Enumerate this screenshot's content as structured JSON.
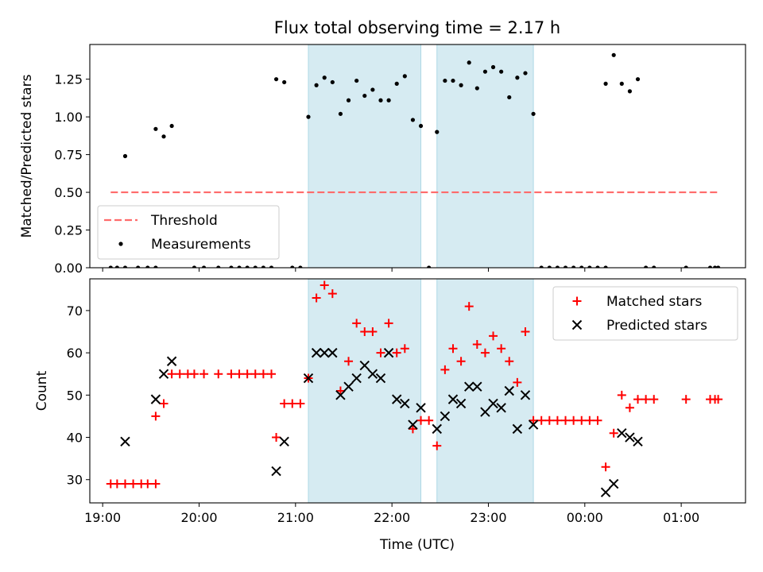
{
  "title": "Flux total observing time = 2.17 h",
  "xlabel": "Time (UTC)",
  "colors": {
    "threshold": "#ff6b6b",
    "shade": "#add8e6",
    "matched": "#ff0000",
    "predicted": "#000000",
    "measurements": "#000000"
  },
  "chart_data": [
    {
      "type": "scatter",
      "panel": "top",
      "ylabel": "Matched/Predicted stars",
      "ylim": [
        0,
        1.48
      ],
      "yticks": [
        "0.00",
        "0.25",
        "0.50",
        "0.75",
        "1.00",
        "1.25"
      ],
      "xticks": [
        "19:00",
        "20:00",
        "21:00",
        "22:00",
        "23:00",
        "00:00",
        "01:00"
      ],
      "xlim": [
        "18:52",
        "01:40"
      ],
      "legend": {
        "position": "lower-left",
        "entries": [
          "Threshold",
          "Measurements"
        ]
      },
      "shaded_intervals": [
        [
          "21:08",
          "22:18"
        ],
        [
          "22:28",
          "23:28"
        ]
      ],
      "threshold": {
        "name": "Threshold",
        "y": 0.5,
        "x_start": "19:05",
        "x_end": "01:23"
      },
      "series": [
        {
          "name": "Measurements",
          "points": [
            [
              "19:05",
              0
            ],
            [
              "19:09",
              0
            ],
            [
              "19:14",
              0
            ],
            [
              "19:22",
              0
            ],
            [
              "19:28",
              0
            ],
            [
              "19:33",
              0
            ],
            [
              "19:14",
              0.74
            ],
            [
              "19:33",
              0.92
            ],
            [
              "19:38",
              0.87
            ],
            [
              "19:43",
              0.94
            ],
            [
              "19:57",
              0
            ],
            [
              "20:03",
              0
            ],
            [
              "20:12",
              0
            ],
            [
              "20:20",
              0
            ],
            [
              "20:25",
              0
            ],
            [
              "20:30",
              0
            ],
            [
              "20:35",
              0
            ],
            [
              "20:40",
              0
            ],
            [
              "20:45",
              0
            ],
            [
              "20:48",
              1.25
            ],
            [
              "20:53",
              1.23
            ],
            [
              "20:58",
              0
            ],
            [
              "21:03",
              0
            ],
            [
              "21:08",
              1.0
            ],
            [
              "21:13",
              1.21
            ],
            [
              "21:18",
              1.26
            ],
            [
              "21:23",
              1.23
            ],
            [
              "21:28",
              1.02
            ],
            [
              "21:33",
              1.11
            ],
            [
              "21:38",
              1.24
            ],
            [
              "21:43",
              1.14
            ],
            [
              "21:48",
              1.18
            ],
            [
              "21:53",
              1.11
            ],
            [
              "21:58",
              1.11
            ],
            [
              "22:03",
              1.22
            ],
            [
              "22:08",
              1.27
            ],
            [
              "22:13",
              0.98
            ],
            [
              "22:18",
              0.94
            ],
            [
              "22:23",
              0
            ],
            [
              "22:28",
              0.9
            ],
            [
              "22:33",
              1.24
            ],
            [
              "22:38",
              1.24
            ],
            [
              "22:43",
              1.21
            ],
            [
              "22:48",
              1.36
            ],
            [
              "22:53",
              1.19
            ],
            [
              "22:58",
              1.3
            ],
            [
              "23:03",
              1.33
            ],
            [
              "23:08",
              1.3
            ],
            [
              "23:13",
              1.13
            ],
            [
              "23:18",
              1.26
            ],
            [
              "23:23",
              1.29
            ],
            [
              "23:28",
              1.02
            ],
            [
              "23:33",
              0
            ],
            [
              "23:38",
              0
            ],
            [
              "23:43",
              0
            ],
            [
              "23:48",
              0
            ],
            [
              "23:53",
              0
            ],
            [
              "23:58",
              0
            ],
            [
              "00:03",
              0
            ],
            [
              "00:08",
              0
            ],
            [
              "00:13",
              0
            ],
            [
              "00:13",
              1.22
            ],
            [
              "00:18",
              1.41
            ],
            [
              "00:23",
              1.22
            ],
            [
              "00:28",
              1.17
            ],
            [
              "00:33",
              1.25
            ],
            [
              "00:38",
              0
            ],
            [
              "00:43",
              0
            ],
            [
              "01:03",
              0
            ],
            [
              "01:18",
              0
            ],
            [
              "01:21",
              0
            ],
            [
              "01:23",
              0
            ]
          ]
        }
      ]
    },
    {
      "type": "scatter",
      "panel": "bottom",
      "ylabel": "Count",
      "ylim": [
        24.5,
        77.5
      ],
      "yticks": [
        "30",
        "40",
        "50",
        "60",
        "70"
      ],
      "xticks": [
        "19:00",
        "20:00",
        "21:00",
        "22:00",
        "23:00",
        "00:00",
        "01:00"
      ],
      "xlim": [
        "18:52",
        "01:40"
      ],
      "legend": {
        "position": "upper-right",
        "entries": [
          "Matched stars",
          "Predicted stars"
        ]
      },
      "shaded_intervals": [
        [
          "21:08",
          "22:18"
        ],
        [
          "22:28",
          "23:28"
        ]
      ],
      "series": [
        {
          "name": "Matched stars",
          "marker": "plus",
          "points": [
            [
              "19:05",
              29
            ],
            [
              "19:09",
              29
            ],
            [
              "19:14",
              29
            ],
            [
              "19:19",
              29
            ],
            [
              "19:24",
              29
            ],
            [
              "19:28",
              29
            ],
            [
              "19:33",
              29
            ],
            [
              "19:33",
              45
            ],
            [
              "19:38",
              48
            ],
            [
              "19:43",
              55
            ],
            [
              "19:48",
              55
            ],
            [
              "19:53",
              55
            ],
            [
              "19:57",
              55
            ],
            [
              "20:03",
              55
            ],
            [
              "20:12",
              55
            ],
            [
              "20:20",
              55
            ],
            [
              "20:25",
              55
            ],
            [
              "20:30",
              55
            ],
            [
              "20:35",
              55
            ],
            [
              "20:40",
              55
            ],
            [
              "20:45",
              55
            ],
            [
              "20:48",
              40
            ],
            [
              "20:53",
              48
            ],
            [
              "20:58",
              48
            ],
            [
              "21:03",
              48
            ],
            [
              "21:08",
              54
            ],
            [
              "21:13",
              73
            ],
            [
              "21:18",
              76
            ],
            [
              "21:23",
              74
            ],
            [
              "21:28",
              51
            ],
            [
              "21:33",
              58
            ],
            [
              "21:38",
              67
            ],
            [
              "21:43",
              65
            ],
            [
              "21:48",
              65
            ],
            [
              "21:53",
              60
            ],
            [
              "21:58",
              67
            ],
            [
              "22:03",
              60
            ],
            [
              "22:08",
              61
            ],
            [
              "22:13",
              42
            ],
            [
              "22:18",
              44
            ],
            [
              "22:23",
              44
            ],
            [
              "22:28",
              38
            ],
            [
              "22:33",
              56
            ],
            [
              "22:38",
              61
            ],
            [
              "22:43",
              58
            ],
            [
              "22:48",
              71
            ],
            [
              "22:53",
              62
            ],
            [
              "22:58",
              60
            ],
            [
              "23:03",
              64
            ],
            [
              "23:08",
              61
            ],
            [
              "23:13",
              58
            ],
            [
              "23:18",
              53
            ],
            [
              "23:23",
              65
            ],
            [
              "23:28",
              44
            ],
            [
              "23:33",
              44
            ],
            [
              "23:38",
              44
            ],
            [
              "23:43",
              44
            ],
            [
              "23:48",
              44
            ],
            [
              "23:53",
              44
            ],
            [
              "23:58",
              44
            ],
            [
              "00:03",
              44
            ],
            [
              "00:08",
              44
            ],
            [
              "00:13",
              33
            ],
            [
              "00:18",
              41
            ],
            [
              "00:23",
              50
            ],
            [
              "00:28",
              47
            ],
            [
              "00:33",
              49
            ],
            [
              "00:38",
              49
            ],
            [
              "00:43",
              49
            ],
            [
              "01:03",
              49
            ],
            [
              "01:18",
              49
            ],
            [
              "01:21",
              49
            ],
            [
              "01:23",
              49
            ]
          ]
        },
        {
          "name": "Predicted stars",
          "marker": "x",
          "points": [
            [
              "19:14",
              39
            ],
            [
              "19:33",
              49
            ],
            [
              "19:38",
              55
            ],
            [
              "19:43",
              58
            ],
            [
              "20:48",
              32
            ],
            [
              "20:53",
              39
            ],
            [
              "21:08",
              54
            ],
            [
              "21:13",
              60
            ],
            [
              "21:18",
              60
            ],
            [
              "21:23",
              60
            ],
            [
              "21:28",
              50
            ],
            [
              "21:33",
              52
            ],
            [
              "21:38",
              54
            ],
            [
              "21:43",
              57
            ],
            [
              "21:48",
              55
            ],
            [
              "21:53",
              54
            ],
            [
              "21:58",
              60
            ],
            [
              "22:03",
              49
            ],
            [
              "22:08",
              48
            ],
            [
              "22:13",
              43
            ],
            [
              "22:18",
              47
            ],
            [
              "22:28",
              42
            ],
            [
              "22:33",
              45
            ],
            [
              "22:38",
              49
            ],
            [
              "22:43",
              48
            ],
            [
              "22:48",
              52
            ],
            [
              "22:53",
              52
            ],
            [
              "22:58",
              46
            ],
            [
              "23:03",
              48
            ],
            [
              "23:08",
              47
            ],
            [
              "23:13",
              51
            ],
            [
              "23:18",
              42
            ],
            [
              "23:23",
              50
            ],
            [
              "23:28",
              43
            ],
            [
              "00:13",
              27
            ],
            [
              "00:18",
              29
            ],
            [
              "00:23",
              41
            ],
            [
              "00:28",
              40
            ],
            [
              "00:33",
              39
            ]
          ]
        }
      ]
    }
  ]
}
